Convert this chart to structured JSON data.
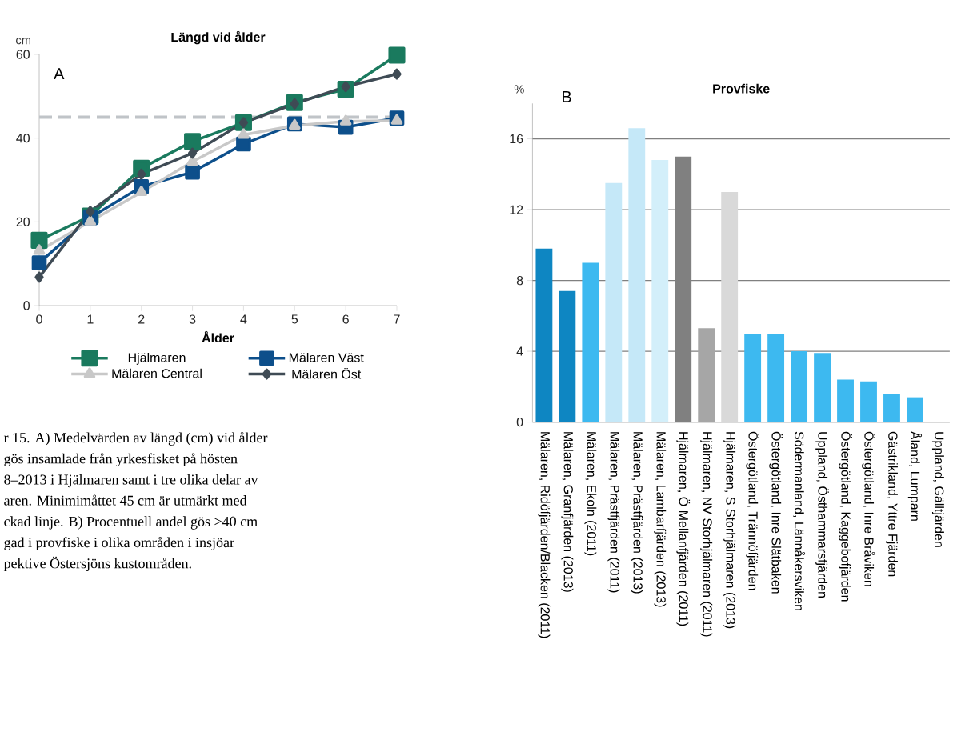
{
  "chart_data": [
    {
      "type": "line",
      "title": "Längd vid ålder",
      "xlabel": "Ålder",
      "ylabel": "cm",
      "xlim": [
        0,
        7
      ],
      "ylim": [
        0,
        60
      ],
      "xticks": [
        0,
        1,
        2,
        3,
        4,
        5,
        6,
        7
      ],
      "yticks": [
        0,
        20,
        40,
        60
      ],
      "x": [
        0,
        1,
        2,
        3,
        4,
        5,
        6,
        7
      ],
      "legend": "bottom",
      "series": [
        {
          "name": "Hjälmaren",
          "color": "#1a7a5e",
          "marker": "square",
          "values": [
            15.6,
            21.4,
            32.8,
            39.2,
            43.7,
            48.5,
            51.7,
            59.8
          ]
        },
        {
          "name": "Mälaren Väst",
          "color": "#0d4f8b",
          "marker": "square",
          "values": [
            10.2,
            21.0,
            28.4,
            31.9,
            38.6,
            43.4,
            42.6,
            44.8
          ]
        },
        {
          "name": "Mälaren Central",
          "color": "#c8c8c8",
          "marker": "triangle",
          "values": [
            13.1,
            20.1,
            27.1,
            34.4,
            40.8,
            43.0,
            44.0,
            44.2
          ]
        },
        {
          "name": "Mälaren Öst",
          "color": "#3f4b55",
          "marker": "diamond",
          "values": [
            6.8,
            22.5,
            31.4,
            36.4,
            43.7,
            48.2,
            52.3,
            55.3
          ]
        }
      ],
      "ref_lines": [
        {
          "axis": "y",
          "value": 45,
          "color": "#c0c4c8",
          "line_style": "dashed"
        }
      ],
      "annotations": [
        "A",
        "r 15. A) Medelvärden av längd (cm) vid ålder",
        "gös insamlade från yrkesfisket på hösten",
        "8–2013 i Hjälmaren samt i tre olika delar av",
        "aren. Minimimåttet 45 cm är utmärkt med",
        "ckad linje. B) Procentuell andel gös >40 cm",
        "gad i provfiske i olika områden i insjöar",
        "pektive Östersjöns kustområden."
      ]
    },
    {
      "type": "bar",
      "title": "Provfiske",
      "ylabel": "%",
      "ylim": [
        0,
        18
      ],
      "yticks": [
        0,
        4,
        8,
        12,
        16
      ],
      "grid": "y",
      "categories": [
        "Mälaren, Ridöfjärden/Blacken (2011)",
        "Mälaren, Granfjärden (2013)",
        "Mälaren, Ekoln (2011)",
        "Mälaren, Prästfjärden (2011)",
        "Mälaren, Prästfjärden (2013)",
        "Mälaren, Lambarfjärden (2013)",
        "Hjälmaren, Ö Mellanfjärden (2011)",
        "Hjälmaren, NV Storhjälmaren (2011)",
        "Hjälmaren, S Storhjälmaren (2013)",
        "Östergötland, Trännöfjärden",
        "Östergötland, Inre Slätbaken",
        "Södermanland, Lännåkersviken",
        "Uppland, Östhammarsfjärden",
        "Östergötland, Kaggebofjärden",
        "Östergötland, Inre Bråviken",
        "Gästrikland, Yttre Fjärden",
        "Åland, Lumparn",
        "Uppland, Gälltjärden"
      ],
      "values": [
        9.8,
        7.4,
        9.0,
        13.5,
        16.6,
        14.8,
        15.0,
        5.3,
        13.0,
        5.0,
        5.0,
        4.0,
        3.9,
        2.4,
        2.3,
        1.6,
        1.4,
        null
      ],
      "colors": [
        "#0e86c2",
        "#0e86c2",
        "#3db9f0",
        "#c5e8f8",
        "#c5e8f8",
        "#d3effa",
        "#808080",
        "#a6a6a6",
        "#d9d9d9",
        "#3db9f0",
        "#3db9f0",
        "#3db9f0",
        "#3db9f0",
        "#3db9f0",
        "#3db9f0",
        "#3db9f0",
        "#3db9f0",
        "#3db9f0"
      ],
      "annotations": [
        "B"
      ]
    }
  ]
}
